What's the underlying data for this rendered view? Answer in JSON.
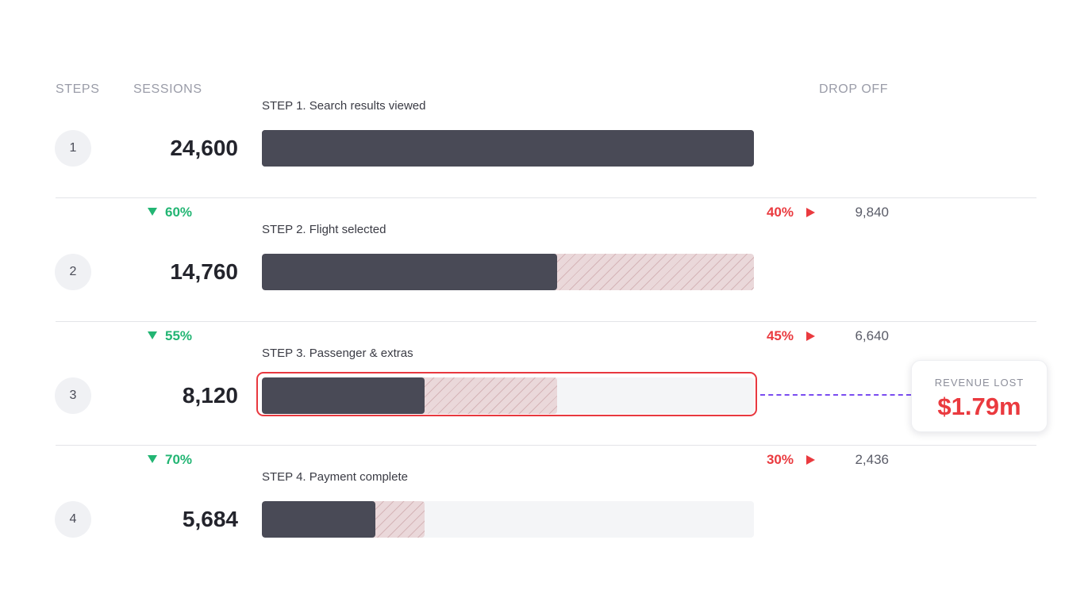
{
  "headers": {
    "steps": "STEPS",
    "sessions": "SESSIONS",
    "drop_off": "DROP OFF"
  },
  "colors": {
    "bar_fill": "#494a56",
    "bar_dropoff_hatch": "#ead8da",
    "track": "#f4f5f7",
    "conversion_green": "#22b573",
    "dropoff_red": "#ea3a3f",
    "highlight_border": "#e8383f",
    "connector_purple": "#7a4cf0"
  },
  "chart_data": {
    "type": "bar",
    "orientation": "horizontal",
    "steps": [
      {
        "number": "1",
        "label": "STEP 1. Search results viewed",
        "sessions": 24600,
        "sessions_text": "24,600"
      },
      {
        "number": "2",
        "label": "STEP 2. Flight selected",
        "sessions": 14760,
        "sessions_text": "14,760"
      },
      {
        "number": "3",
        "label": "STEP 3. Passenger & extras",
        "sessions": 8120,
        "sessions_text": "8,120"
      },
      {
        "number": "4",
        "label": "STEP 4. Payment complete",
        "sessions": 5684,
        "sessions_text": "5,684"
      }
    ],
    "transitions": [
      {
        "conversion": "60%",
        "drop_pct": "40%",
        "drop_count": "9,840"
      },
      {
        "conversion": "55%",
        "drop_pct": "45%",
        "drop_count": "6,640"
      },
      {
        "conversion": "70%",
        "drop_pct": "30%",
        "drop_count": "2,436"
      }
    ],
    "max": 24600,
    "highlighted_step": 3
  },
  "revenue_lost": {
    "title": "REVENUE LOST",
    "value": "$1.79m"
  }
}
